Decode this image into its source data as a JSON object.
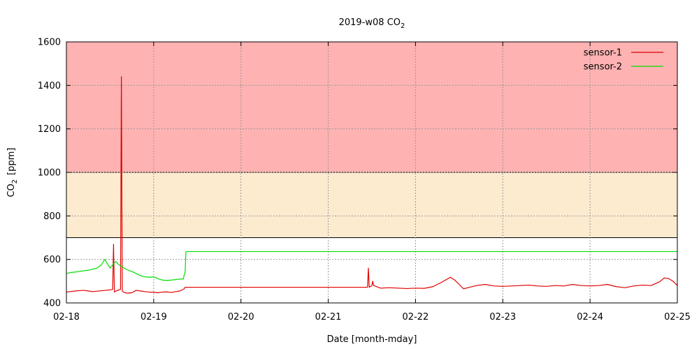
{
  "chart_data": {
    "type": "line",
    "title": "2019-w08 CO",
    "title_sub": "2",
    "xlabel": "Date [month-mday]",
    "ylabel": "CO",
    "ylabel_sub": "2",
    "ylabel_unit": "[ppm]",
    "ylim": [
      400,
      1600
    ],
    "yticks": [
      400,
      600,
      800,
      1000,
      1200,
      1400,
      1600
    ],
    "xlim": [
      0,
      7
    ],
    "xtick_labels": [
      "02-18",
      "02-19",
      "02-20",
      "02-21",
      "02-22",
      "02-23",
      "02-24",
      "02-25"
    ],
    "grid": true,
    "legend_position": "top-right",
    "bands": [
      {
        "from": 700,
        "to": 1000,
        "color": "#fdebd0"
      },
      {
        "from": 1000,
        "to": 1600,
        "color": "#feb2b2"
      }
    ],
    "band_line_color": "#000000",
    "series": [
      {
        "name": "sensor-1",
        "color": "#e00000",
        "points": [
          [
            0.0,
            450
          ],
          [
            0.1,
            455
          ],
          [
            0.2,
            458
          ],
          [
            0.3,
            452
          ],
          [
            0.4,
            456
          ],
          [
            0.5,
            460
          ],
          [
            0.53,
            462
          ],
          [
            0.54,
            670
          ],
          [
            0.55,
            450
          ],
          [
            0.57,
            455
          ],
          [
            0.6,
            460
          ],
          [
            0.62,
            462
          ],
          [
            0.63,
            1440
          ],
          [
            0.64,
            455
          ],
          [
            0.66,
            448
          ],
          [
            0.7,
            445
          ],
          [
            0.75,
            447
          ],
          [
            0.8,
            458
          ],
          [
            0.85,
            455
          ],
          [
            0.9,
            452
          ],
          [
            0.95,
            450
          ],
          [
            1.0,
            449
          ],
          [
            1.05,
            447
          ],
          [
            1.1,
            450
          ],
          [
            1.15,
            451
          ],
          [
            1.2,
            448
          ],
          [
            1.25,
            452
          ],
          [
            1.3,
            455
          ],
          [
            1.35,
            465
          ],
          [
            1.36,
            472
          ],
          [
            1.6,
            472
          ],
          [
            2.0,
            472
          ],
          [
            2.5,
            472
          ],
          [
            3.0,
            472
          ],
          [
            3.45,
            472
          ],
          [
            3.46,
            560
          ],
          [
            3.47,
            472
          ],
          [
            3.5,
            480
          ],
          [
            3.51,
            500
          ],
          [
            3.52,
            480
          ],
          [
            3.6,
            468
          ],
          [
            3.7,
            470
          ],
          [
            3.8,
            468
          ],
          [
            3.9,
            466
          ],
          [
            4.0,
            468
          ],
          [
            4.1,
            467
          ],
          [
            4.2,
            475
          ],
          [
            4.3,
            495
          ],
          [
            4.4,
            518
          ],
          [
            4.45,
            505
          ],
          [
            4.5,
            485
          ],
          [
            4.55,
            465
          ],
          [
            4.6,
            470
          ],
          [
            4.7,
            480
          ],
          [
            4.8,
            485
          ],
          [
            4.9,
            478
          ],
          [
            5.0,
            476
          ],
          [
            5.1,
            478
          ],
          [
            5.2,
            480
          ],
          [
            5.3,
            482
          ],
          [
            5.4,
            478
          ],
          [
            5.5,
            476
          ],
          [
            5.6,
            480
          ],
          [
            5.7,
            478
          ],
          [
            5.8,
            485
          ],
          [
            5.9,
            480
          ],
          [
            6.0,
            478
          ],
          [
            6.1,
            480
          ],
          [
            6.2,
            485
          ],
          [
            6.3,
            475
          ],
          [
            6.4,
            470
          ],
          [
            6.5,
            478
          ],
          [
            6.6,
            482
          ],
          [
            6.7,
            480
          ],
          [
            6.8,
            498
          ],
          [
            6.85,
            515
          ],
          [
            6.9,
            512
          ],
          [
            6.95,
            500
          ],
          [
            7.0,
            480
          ]
        ]
      },
      {
        "name": "sensor-2",
        "color": "#00dd00",
        "points": [
          [
            0.0,
            535
          ],
          [
            0.05,
            540
          ],
          [
            0.1,
            542
          ],
          [
            0.15,
            545
          ],
          [
            0.2,
            548
          ],
          [
            0.25,
            550
          ],
          [
            0.3,
            555
          ],
          [
            0.35,
            560
          ],
          [
            0.4,
            575
          ],
          [
            0.44,
            600
          ],
          [
            0.47,
            580
          ],
          [
            0.5,
            560
          ],
          [
            0.53,
            575
          ],
          [
            0.55,
            585
          ],
          [
            0.57,
            590
          ],
          [
            0.59,
            580
          ],
          [
            0.62,
            570
          ],
          [
            0.66,
            560
          ],
          [
            0.7,
            552
          ],
          [
            0.75,
            545
          ],
          [
            0.8,
            535
          ],
          [
            0.85,
            525
          ],
          [
            0.9,
            520
          ],
          [
            0.95,
            518
          ],
          [
            1.0,
            520
          ],
          [
            1.03,
            515
          ],
          [
            1.06,
            510
          ],
          [
            1.1,
            505
          ],
          [
            1.15,
            503
          ],
          [
            1.2,
            505
          ],
          [
            1.25,
            507
          ],
          [
            1.3,
            510
          ],
          [
            1.34,
            510
          ],
          [
            1.35,
            530
          ],
          [
            1.36,
            540
          ],
          [
            1.37,
            636
          ],
          [
            2.0,
            636
          ],
          [
            3.0,
            636
          ],
          [
            4.0,
            636
          ],
          [
            5.0,
            636
          ],
          [
            6.0,
            636
          ],
          [
            7.0,
            636
          ]
        ]
      }
    ]
  }
}
